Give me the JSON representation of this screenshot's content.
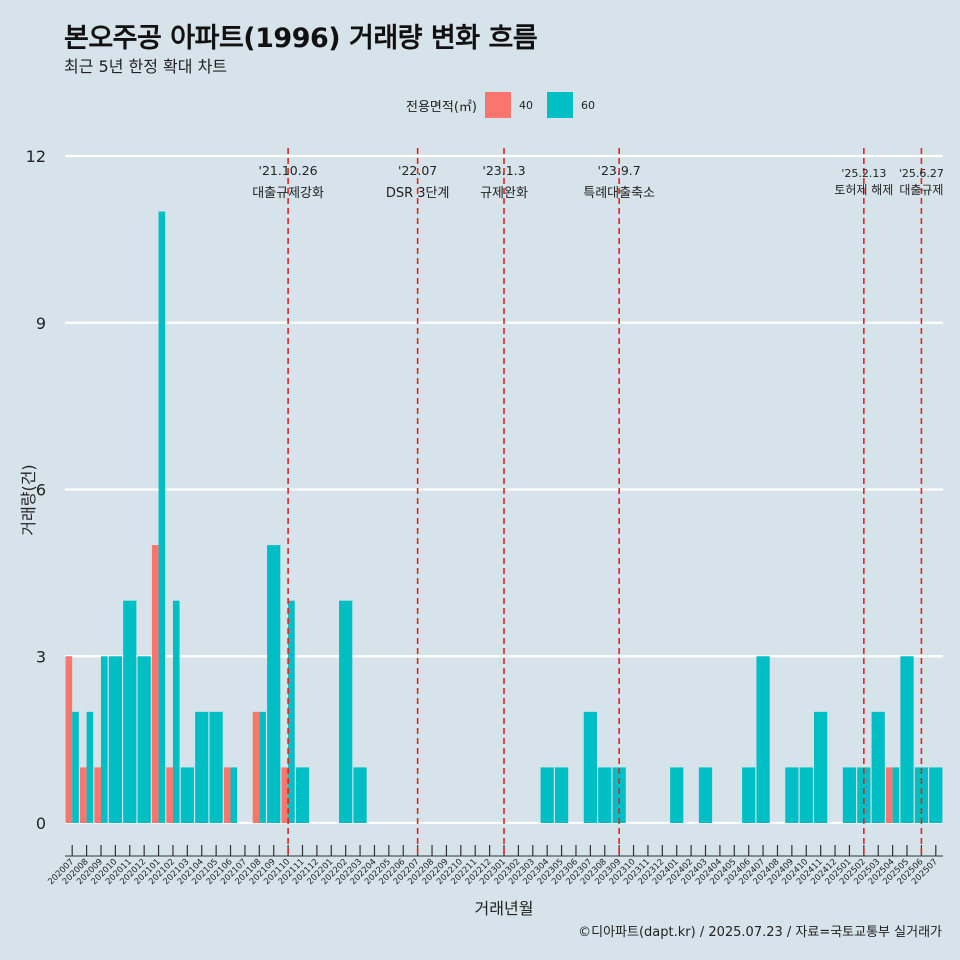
{
  "title": "본오주공 아파트(1996) 거래량 변화 흐름",
  "subtitle": "최근 5년 한정 확대 차트",
  "legend": {
    "title": "전용면적(㎡)",
    "items": [
      {
        "label": "40",
        "color": "#f8766d"
      },
      {
        "label": "60",
        "color": "#00bfc4"
      }
    ]
  },
  "caption": "©디아파트(dapt.kr) / 2025.07.23 / 자료=국토교통부 실거래가",
  "chart_data": {
    "type": "bar",
    "xlabel": "거래년월",
    "ylabel": "거래량(건)",
    "ylim": [
      0,
      12
    ],
    "yticks": [
      0,
      3,
      6,
      9,
      12
    ],
    "grid": true,
    "legend_position": "top",
    "categories": [
      "202007",
      "202008",
      "202009",
      "202010",
      "202011",
      "202012",
      "202101",
      "202102",
      "202103",
      "202104",
      "202105",
      "202106",
      "202107",
      "202108",
      "202109",
      "202110",
      "202111",
      "202112",
      "202201",
      "202202",
      "202203",
      "202204",
      "202205",
      "202206",
      "202207",
      "202208",
      "202209",
      "202210",
      "202211",
      "202212",
      "202301",
      "202302",
      "202303",
      "202304",
      "202305",
      "202306",
      "202307",
      "202308",
      "202309",
      "202310",
      "202311",
      "202312",
      "202401",
      "202402",
      "202403",
      "202404",
      "202405",
      "202406",
      "202407",
      "202408",
      "202409",
      "202410",
      "202411",
      "202412",
      "202501",
      "202502",
      "202503",
      "202504",
      "202505",
      "202506",
      "202507"
    ],
    "series": [
      {
        "name": "40",
        "color": "#f8766d",
        "values": [
          3,
          1,
          1,
          0,
          0,
          0,
          5,
          1,
          0,
          0,
          0,
          1,
          0,
          2,
          0,
          1,
          0,
          0,
          0,
          0,
          0,
          0,
          0,
          0,
          0,
          0,
          0,
          0,
          0,
          0,
          0,
          0,
          0,
          0,
          0,
          0,
          0,
          0,
          0,
          0,
          0,
          0,
          0,
          0,
          0,
          0,
          0,
          0,
          0,
          0,
          0,
          0,
          0,
          0,
          0,
          0,
          0,
          1,
          0,
          0,
          0
        ]
      },
      {
        "name": "60",
        "color": "#00bfc4",
        "values": [
          2,
          2,
          3,
          3,
          4,
          3,
          11,
          4,
          1,
          2,
          2,
          1,
          0,
          2,
          5,
          4,
          1,
          0,
          0,
          4,
          1,
          0,
          0,
          0,
          0,
          0,
          0,
          0,
          0,
          0,
          0,
          0,
          0,
          1,
          1,
          0,
          2,
          1,
          1,
          0,
          0,
          0,
          1,
          0,
          1,
          0,
          0,
          1,
          3,
          0,
          1,
          1,
          2,
          0,
          1,
          1,
          2,
          1,
          3,
          1,
          1
        ]
      }
    ],
    "annotations": [
      {
        "category": "202110",
        "date": "'21.10.26",
        "label": "대출규제강화"
      },
      {
        "category": "202207",
        "date": "'22.07",
        "label": "DSR 3단계"
      },
      {
        "category": "202301",
        "date": "'23.1.3",
        "label": "규제완화"
      },
      {
        "category": "202309",
        "date": "'23.9.7",
        "label": "특례대출축소"
      },
      {
        "category": "202502",
        "date": "'25.2.13",
        "label": "토허제 해제"
      },
      {
        "category": "202506",
        "date": "'25.6.27",
        "label": "대출규제"
      }
    ]
  }
}
